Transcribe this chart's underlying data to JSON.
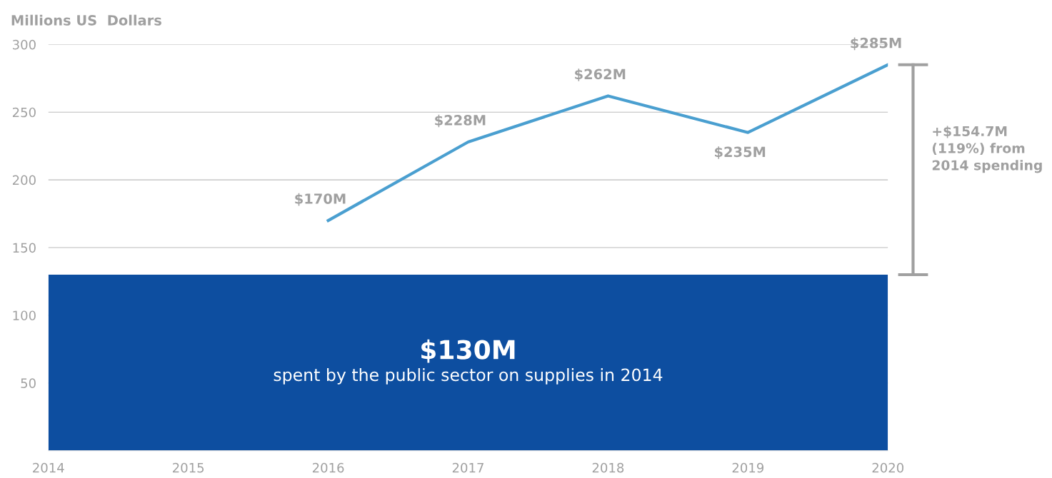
{
  "chart_data": {
    "type": "line",
    "ylabel": "Millions US  Dollars",
    "x": [
      2016,
      2017,
      2018,
      2019,
      2020
    ],
    "series": [
      {
        "color": "#4a9fd0",
        "values": [
          170,
          228,
          262,
          235,
          285
        ],
        "value_labels": [
          "$170M",
          "$228M",
          "$262M",
          "$235M",
          "$285M"
        ]
      }
    ],
    "xlim": [
      2014,
      2020
    ],
    "xticks": [
      2014,
      2015,
      2016,
      2017,
      2018,
      2019,
      2020
    ],
    "ylim": [
      0,
      300
    ],
    "yticks": [
      50,
      100,
      150,
      200,
      250,
      300
    ],
    "grid": "y",
    "marker": "none",
    "line_style": "solid",
    "bands": [
      {
        "axis": "y",
        "from": 0,
        "to": 130,
        "label": "$130M",
        "color": "#0d4ea0"
      }
    ],
    "annotations": [
      "spent by the public sector on supplies in 2014",
      "+$154.7M\n(119%) from\n2014 spending"
    ]
  }
}
